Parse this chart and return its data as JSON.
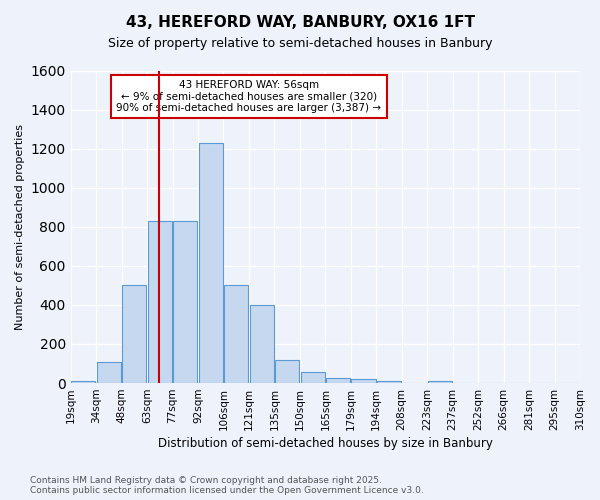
{
  "title": "43, HEREFORD WAY, BANBURY, OX16 1FT",
  "subtitle": "Size of property relative to semi-detached houses in Banbury",
  "xlabel": "Distribution of semi-detached houses by size in Banbury",
  "ylabel": "Number of semi-detached properties",
  "footer_line1": "Contains HM Land Registry data © Crown copyright and database right 2025.",
  "footer_line2": "Contains public sector information licensed under the Open Government Licence v3.0.",
  "annotation_title": "43 HEREFORD WAY: 56sqm",
  "annotation_line2": "← 9% of semi-detached houses are smaller (320)",
  "annotation_line3": "90% of semi-detached houses are larger (3,387) →",
  "bin_labels": [
    "19sqm",
    "34sqm",
    "48sqm",
    "63sqm",
    "77sqm",
    "92sqm",
    "106sqm",
    "121sqm",
    "135sqm",
    "150sqm",
    "165sqm",
    "179sqm",
    "194sqm",
    "208sqm",
    "223sqm",
    "237sqm",
    "252sqm",
    "266sqm",
    "281sqm",
    "295sqm",
    "310sqm"
  ],
  "bar_values": [
    10,
    110,
    500,
    830,
    830,
    1230,
    500,
    400,
    120,
    55,
    25,
    20,
    10,
    0,
    10,
    0,
    0,
    0,
    0,
    0
  ],
  "bar_color": "#c5d8f0",
  "bar_edge_color": "#5b9bd5",
  "vline_x": 2.975,
  "vline_color": "#cc0000",
  "ylim": [
    0,
    1600
  ],
  "yticks": [
    0,
    200,
    400,
    600,
    800,
    1000,
    1200,
    1400,
    1600
  ],
  "background_color": "#eef2fa",
  "grid_color": "#ffffff",
  "annotation_box_color": "#ffffff",
  "annotation_box_edge": "#cc0000"
}
